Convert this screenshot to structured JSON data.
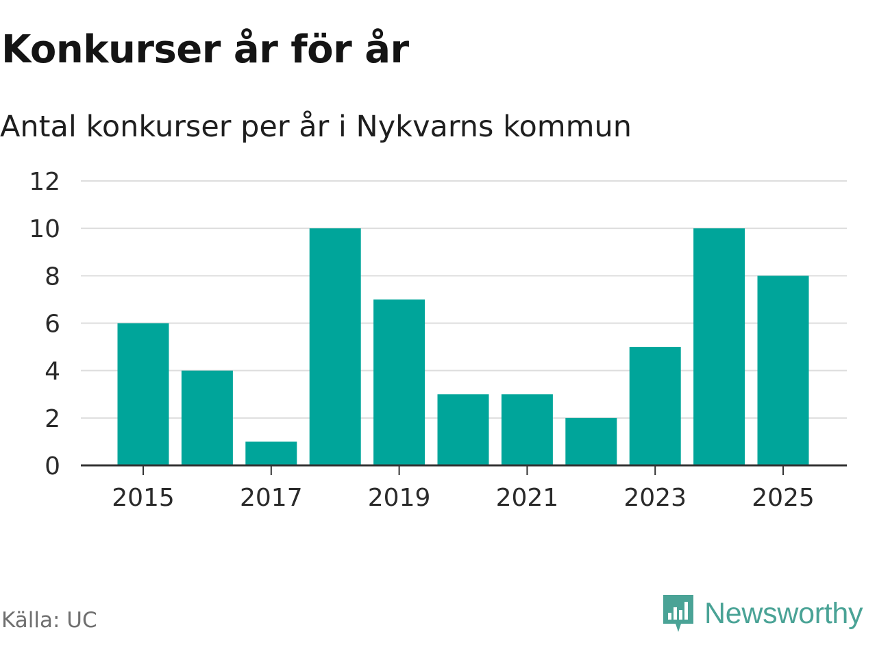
{
  "header": {
    "title": "Konkurser år för år",
    "subtitle": "Antal konkurser per år i Nykvarns kommun"
  },
  "footer": {
    "source": "Källa: UC",
    "brand": "Newsworthy"
  },
  "colors": {
    "bar": "#00a59a",
    "grid": "#dddddd",
    "axis": "#333333",
    "brand": "#4aa396"
  },
  "chart_data": {
    "type": "bar",
    "categories": [
      "2015",
      "2016",
      "2017",
      "2018",
      "2019",
      "2020",
      "2021",
      "2022",
      "2023",
      "2024",
      "2025"
    ],
    "values": [
      6,
      4,
      1,
      10,
      7,
      3,
      3,
      2,
      5,
      10,
      8
    ],
    "x_tick_labels": [
      "2015",
      "2017",
      "2019",
      "2021",
      "2023",
      "2025"
    ],
    "y_ticks": [
      0,
      2,
      4,
      6,
      8,
      10,
      12
    ],
    "ylim": [
      0,
      12
    ],
    "xlabel": "",
    "ylabel": "",
    "grid": true,
    "legend": "none"
  }
}
